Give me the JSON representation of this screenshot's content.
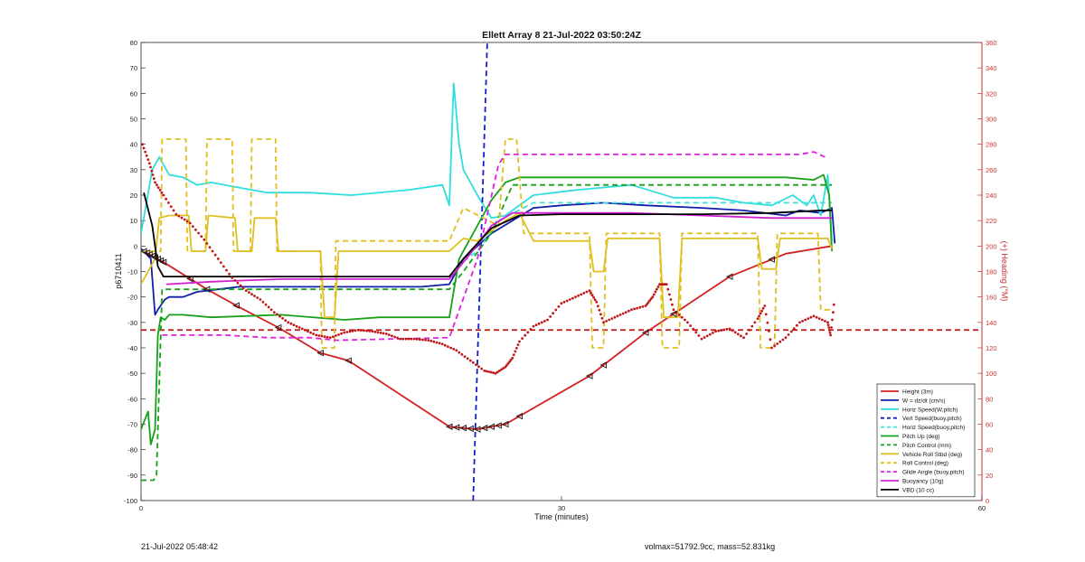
{
  "colors": {
    "height": "#d42020",
    "w": "#1020a8",
    "horiz_w": "#30dede",
    "vert_buoy": "#1020c8",
    "horiz_buoy": "#40dede",
    "pitch_up": "#18a018",
    "pitch_ctrl": "#18a018",
    "roll_stbd": "#e0c020",
    "roll_ctrl": "#e0c020",
    "glide": "#e020e0",
    "buoy": "#d020d0",
    "vbd": "#000000",
    "heading": "#c01818",
    "right_axis": "#c83030"
  },
  "footer": {
    "left": "21-Jul-2022 05:48:42",
    "right": "volmax=51792.9cc, mass=52.831kg"
  },
  "chart_data": {
    "type": "line",
    "title": "Ellett Array 8 21-Jul-2022 03:50:24Z",
    "xlabel": "Time (minutes)",
    "ylabel": "p6710411",
    "y2label": "(+) Heading (°M)",
    "xlim": [
      0,
      60
    ],
    "ylim": [
      -100,
      80
    ],
    "y2lim": [
      0,
      360
    ],
    "xticks": [
      0,
      30,
      60
    ],
    "yticks": [
      -100,
      -90,
      -80,
      -70,
      -60,
      -50,
      -40,
      -30,
      -20,
      -10,
      0,
      10,
      20,
      30,
      40,
      50,
      60,
      70,
      80
    ],
    "y2ticks": [
      0,
      20,
      40,
      60,
      80,
      100,
      120,
      140,
      160,
      180,
      200,
      220,
      240,
      260,
      280,
      300,
      320,
      340,
      360
    ],
    "legend_position": "bottom-right",
    "series": [
      {
        "name": "Height (3m)",
        "key": "height",
        "dash": false,
        "x": [
          0,
          1.5,
          4.7,
          7,
          9.8,
          12.8,
          14.8,
          22,
          24,
          26,
          32,
          36,
          42,
          46,
          49.3
        ],
        "y": [
          -1.5,
          -6,
          -17,
          -24,
          -32,
          -42,
          -45,
          -71,
          -72,
          -70,
          -51,
          -34,
          -12,
          -3,
          0
        ]
      },
      {
        "name": "W = dz/dt (cm/s)",
        "key": "w",
        "dash": false,
        "x": [
          0,
          0.7,
          1,
          1.2,
          1.7,
          2,
          3,
          4,
          5.5,
          7,
          9,
          11,
          14,
          17,
          20,
          22,
          23,
          25,
          28,
          30,
          33,
          36,
          40,
          43,
          46,
          47,
          48.5,
          49.3,
          49.5
        ],
        "y": [
          -1,
          -5,
          -27,
          -25,
          -21,
          -20,
          -20,
          -18,
          -17,
          -16,
          -16,
          -16,
          -16,
          -16,
          -16,
          -15,
          -5,
          5,
          15,
          16,
          17,
          16,
          15,
          14,
          12,
          14,
          13,
          15,
          1
        ]
      },
      {
        "name": "Horiz Speed(W,pitch)",
        "key": "horiz_w",
        "dash": false,
        "x": [
          0,
          0.8,
          1.3,
          2,
          3,
          4,
          5,
          7,
          9,
          12,
          15,
          19,
          21.5,
          22,
          22.3,
          22.7,
          23,
          24,
          25,
          26,
          28,
          31,
          35,
          38,
          41,
          43,
          45,
          46.5,
          47.5,
          48,
          48.5,
          49,
          49.3
        ],
        "y": [
          5,
          30,
          35,
          28,
          27,
          24,
          25,
          23,
          21,
          21,
          20,
          22,
          24,
          16,
          64,
          40,
          30,
          20,
          11,
          12,
          20,
          22,
          24,
          19,
          19,
          17,
          16,
          20,
          16,
          20,
          12,
          28,
          2
        ]
      },
      {
        "name": "Vert Speed(buoy,pitch)",
        "key": "vert_buoy",
        "dash": true,
        "x": [
          23.7,
          24.7
        ],
        "y": [
          -100,
          80
        ]
      },
      {
        "name": "Horiz Speed(buoy,pitch)",
        "key": "horiz_buoy",
        "dash": true,
        "x": [
          22.5,
          24,
          25.5,
          28,
          49.3
        ],
        "y": [
          -8,
          -2,
          10,
          17,
          17
        ]
      },
      {
        "name": "Pitch Up (deg)",
        "key": "pitch_up",
        "dash": false,
        "x": [
          0,
          0.5,
          0.7,
          1,
          1.2,
          1.4,
          1.7,
          2,
          3,
          5,
          10,
          14.5,
          17,
          22,
          22.7,
          25,
          26,
          27,
          30,
          35,
          40,
          45,
          46,
          48,
          48.7,
          49.1,
          49.3
        ],
        "y": [
          -72,
          -65,
          -78,
          -72,
          -35,
          -28,
          -29,
          -27,
          -27,
          -28,
          -27,
          -29,
          -28,
          -28,
          -5,
          18,
          25,
          27,
          27,
          27,
          27,
          27,
          27,
          26,
          28,
          20,
          -2
        ]
      },
      {
        "name": "Pitch Control (mm)",
        "key": "pitch_ctrl",
        "dash": true,
        "x": [
          0,
          0.9,
          1.1,
          1.5,
          22,
          23,
          25,
          26.5,
          49.3
        ],
        "y": [
          -92,
          -92,
          -90,
          -17,
          -17,
          -10,
          5,
          24,
          24
        ]
      },
      {
        "name": "Vehicle Roll Stbd (deg)",
        "key": "roll_stbd",
        "dash": false,
        "x": [
          0,
          1,
          1.3,
          2,
          3.4,
          3.6,
          4.6,
          4.8,
          6.7,
          6.9,
          7.9,
          8.1,
          9.6,
          9.8,
          12.8,
          13.1,
          13.8,
          14.1,
          22,
          23,
          24,
          26,
          27,
          28,
          32,
          32.3,
          33,
          33.3,
          37,
          37.3,
          38.3,
          38.6,
          44,
          44.3,
          45.3,
          45.6,
          48,
          49,
          49.3
        ],
        "y": [
          -15,
          -5,
          11,
          12,
          12,
          -2,
          -2,
          12,
          11,
          -2,
          -2,
          11,
          11,
          -2,
          -2,
          -28,
          -28,
          -2,
          -2,
          3,
          2,
          10,
          13,
          2,
          2,
          -10,
          -10,
          3,
          3,
          -28,
          -28,
          3,
          3,
          -9,
          -9,
          3,
          3,
          3,
          -1
        ]
      },
      {
        "name": "Roll Control (deg)",
        "key": "roll_ctrl",
        "dash": true,
        "x": [
          0,
          1.4,
          1.5,
          3.2,
          3.3,
          4.6,
          4.7,
          6.5,
          6.6,
          7.8,
          7.9,
          9.6,
          9.7,
          12.8,
          12.9,
          13.8,
          13.9,
          22,
          23,
          25.5,
          26,
          26.8,
          27.3,
          32,
          32.2,
          33,
          33.2,
          37,
          37.2,
          38.4,
          38.6,
          44,
          44.2,
          45.2,
          45.4,
          48.3,
          48.5,
          49.3
        ],
        "y": [
          -2,
          -2,
          42,
          42,
          -2,
          -2,
          42,
          42,
          -2,
          -2,
          42,
          42,
          -2,
          -2,
          -40,
          -40,
          2,
          2,
          15,
          8,
          42,
          42,
          5,
          5,
          -40,
          -40,
          5,
          5,
          -40,
          -40,
          5,
          5,
          -40,
          -40,
          5,
          5,
          -25,
          -25
        ]
      },
      {
        "name": "Glide Angle (buoy,pitch)",
        "key": "glide",
        "dash": true,
        "x": [
          1.5,
          3,
          6,
          9,
          12,
          14,
          22,
          24,
          25.5,
          26,
          30,
          35,
          40,
          44,
          47,
          48,
          48.8
        ],
        "y": [
          -35,
          -35,
          -35,
          -36,
          -36,
          -37,
          -36,
          -5,
          32,
          36,
          36,
          36,
          36,
          36,
          36,
          37,
          35
        ]
      },
      {
        "name": "Buoyancy (10g)",
        "key": "buoy",
        "dash": false,
        "x": [
          1.8,
          5,
          10,
          15,
          20,
          22,
          23.5,
          25,
          26.5,
          28,
          35,
          40,
          45,
          49.3
        ],
        "y": [
          -15,
          -14,
          -13,
          -13,
          -13,
          -13,
          -3,
          8,
          13,
          13,
          13,
          12,
          11,
          11
        ]
      },
      {
        "name": "VBD (10 cc)",
        "key": "vbd",
        "dash": false,
        "x": [
          0.2,
          0.8,
          1.2,
          1.6,
          10,
          22,
          23,
          25,
          27,
          30,
          40,
          45,
          48.5,
          49.3
        ],
        "y": [
          21,
          8,
          -8,
          -12,
          -12,
          -12,
          -5,
          7,
          12,
          12.5,
          12.5,
          13,
          14,
          14
        ]
      }
    ],
    "heading_level": {
      "key": "heading",
      "y2": 134
    },
    "heading": {
      "key": "heading",
      "x": [
        0.1,
        0.6,
        1,
        1.6,
        2.5,
        3.5,
        4.5,
        5.5,
        6.5,
        7.5,
        8.5,
        9.5,
        10.5,
        11.5,
        12.5,
        13.5,
        14.5,
        15.5,
        16.5,
        17.5,
        18.5,
        19.5,
        20.5,
        21.5,
        22.5,
        23.5,
        24.5,
        25.3,
        26,
        26.5,
        27,
        28,
        29,
        30,
        31,
        32,
        32.5,
        33,
        34,
        35,
        36,
        36.5,
        37,
        37.5,
        38,
        39,
        40,
        41,
        42,
        43,
        44,
        44.5,
        45,
        46,
        47,
        48,
        49,
        49.2,
        49.5
      ],
      "y": [
        280,
        265,
        250,
        240,
        225,
        218,
        205,
        190,
        175,
        165,
        158,
        148,
        140,
        135,
        130,
        128,
        132,
        134,
        133,
        131,
        127,
        127,
        126,
        123,
        118,
        110,
        102,
        100,
        105,
        112,
        125,
        137,
        142,
        155,
        160,
        165,
        156,
        140,
        145,
        150,
        153,
        160,
        170,
        170,
        150,
        140,
        127,
        133,
        135,
        128,
        143,
        153,
        120,
        128,
        140,
        145,
        140,
        130,
        160
      ]
    },
    "markers_x": [
      0.2,
      0.4,
      0.6,
      0.8,
      1.0,
      1.2,
      1.4,
      1.6,
      3.5,
      4.7,
      6.8,
      9.8,
      12.8,
      14.8,
      22,
      22.5,
      23,
      23.5,
      24,
      24.5,
      25,
      25.5,
      26,
      27,
      32,
      33,
      36,
      38,
      42,
      45
    ]
  }
}
